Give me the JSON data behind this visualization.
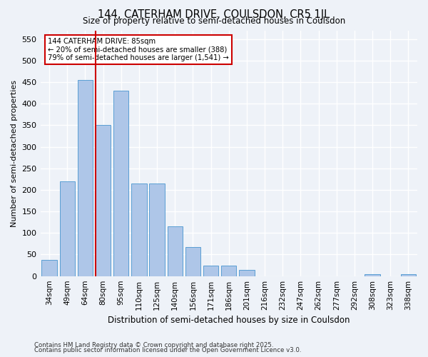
{
  "title1": "144, CATERHAM DRIVE, COULSDON, CR5 1JL",
  "title2": "Size of property relative to semi-detached houses in Coulsdon",
  "xlabel": "Distribution of semi-detached houses by size in Coulsdon",
  "ylabel": "Number of semi-detached properties",
  "categories": [
    "34sqm",
    "49sqm",
    "64sqm",
    "80sqm",
    "95sqm",
    "110sqm",
    "125sqm",
    "140sqm",
    "156sqm",
    "171sqm",
    "186sqm",
    "201sqm",
    "216sqm",
    "232sqm",
    "247sqm",
    "262sqm",
    "277sqm",
    "292sqm",
    "308sqm",
    "323sqm",
    "338sqm"
  ],
  "values": [
    38,
    220,
    455,
    350,
    430,
    215,
    215,
    115,
    68,
    25,
    25,
    15,
    0,
    0,
    0,
    0,
    0,
    0,
    5,
    0,
    5
  ],
  "bar_color": "#aec6e8",
  "bar_edge_color": "#5a9fd4",
  "property_line_color": "#cc0000",
  "annotation_title": "144 CATERHAM DRIVE: 85sqm",
  "annotation_line1": "← 20% of semi-detached houses are smaller (388)",
  "annotation_line2": "79% of semi-detached houses are larger (1,541) →",
  "annotation_box_color": "#ffffff",
  "annotation_box_edge_color": "#cc0000",
  "ylim": [
    0,
    570
  ],
  "yticks": [
    0,
    50,
    100,
    150,
    200,
    250,
    300,
    350,
    400,
    450,
    500,
    550
  ],
  "footnote1": "Contains HM Land Registry data © Crown copyright and database right 2025.",
  "footnote2": "Contains public sector information licensed under the Open Government Licence v3.0.",
  "bg_color": "#eef2f8",
  "grid_color": "#ffffff"
}
